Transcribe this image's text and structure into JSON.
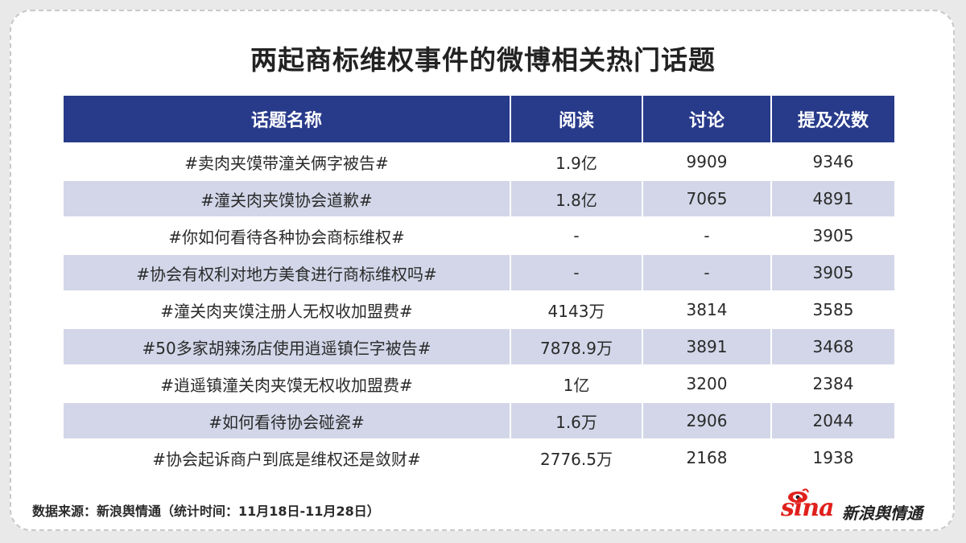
{
  "title": "两起商标维权事件的微博相关热门话题",
  "table": {
    "headers": [
      "话题名称",
      "阅读",
      "讨论",
      "提及次数"
    ],
    "rows": [
      {
        "topic": "#卖肉夹馍带潼关俩字被告#",
        "reads": "1.9亿",
        "discussions": "9909",
        "mentions": "9346"
      },
      {
        "topic": "#潼关肉夹馍协会道歉#",
        "reads": "1.8亿",
        "discussions": "7065",
        "mentions": "4891"
      },
      {
        "topic": "#你如何看待各种协会商标维权#",
        "reads": "-",
        "discussions": "-",
        "mentions": "3905"
      },
      {
        "topic": "#协会有权利对地方美食进行商标维权吗#",
        "reads": "-",
        "discussions": "-",
        "mentions": "3905"
      },
      {
        "topic": "#潼关肉夹馍注册人无权收加盟费#",
        "reads": "4143万",
        "discussions": "3814",
        "mentions": "3585"
      },
      {
        "topic": "#50多家胡辣汤店使用逍遥镇仨字被告#",
        "reads": "7878.9万",
        "discussions": "3891",
        "mentions": "3468"
      },
      {
        "topic": "#逍遥镇潼关肉夹馍无权收加盟费#",
        "reads": "1亿",
        "discussions": "3200",
        "mentions": "2384"
      },
      {
        "topic": "#如何看待协会碰瓷#",
        "reads": "1.6万",
        "discussions": "2906",
        "mentions": "2044"
      },
      {
        "topic": "#协会起诉商户到底是维权还是敛财#",
        "reads": "2776.5万",
        "discussions": "2168",
        "mentions": "1938"
      }
    ]
  },
  "source": "数据来源：新浪舆情通（统计时间：11月18日-11月28日）",
  "logo": {
    "brand": "sina",
    "product": "新浪舆情通",
    "icon": "sina-eye-icon"
  },
  "colors": {
    "header": "#283a8a",
    "stripe": "#d2d6e8",
    "brand_red": "#e0201c"
  }
}
